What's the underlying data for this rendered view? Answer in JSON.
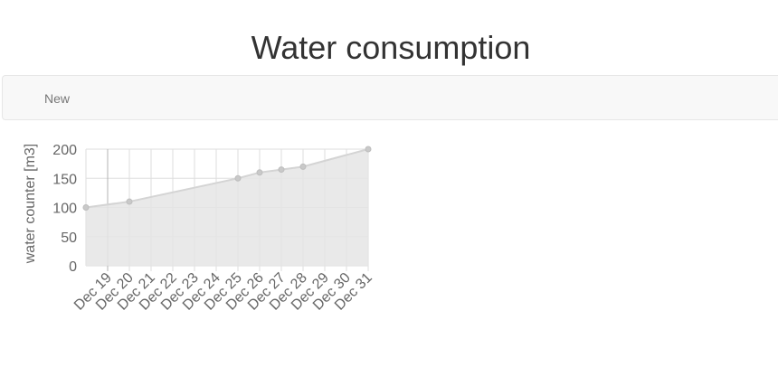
{
  "page": {
    "title": "Water consumption"
  },
  "nav": {
    "items": [
      {
        "label": "New"
      }
    ]
  },
  "colors": {
    "fill": "#e5e5e5",
    "line": "#d4d4d4",
    "point": "#c9c9c9",
    "grid": "#dedede",
    "tick_text": "#666666"
  },
  "chart_data": {
    "type": "area",
    "title": "",
    "xlabel": "",
    "ylabel": "water counter [m3]",
    "ylim": [
      0,
      200
    ],
    "yticks": [
      0,
      50,
      100,
      150,
      200
    ],
    "xlim": [
      "Dec 18",
      "Dec 31"
    ],
    "categories": [
      "Dec 19",
      "Dec 20",
      "Dec 21",
      "Dec 22",
      "Dec 23",
      "Dec 24",
      "Dec 25",
      "Dec 26",
      "Dec 27",
      "Dec 28",
      "Dec 29",
      "Dec 30",
      "Dec 31"
    ],
    "grid": true,
    "series": [
      {
        "points": [
          {
            "x": "Dec 18",
            "y": 100
          },
          {
            "x": "Dec 20",
            "y": 110
          },
          {
            "x": "Dec 25",
            "y": 150
          },
          {
            "x": "Dec 26",
            "y": 160
          },
          {
            "x": "Dec 27",
            "y": 165
          },
          {
            "x": "Dec 28",
            "y": 170
          },
          {
            "x": "Dec 31",
            "y": 200
          }
        ]
      }
    ]
  }
}
